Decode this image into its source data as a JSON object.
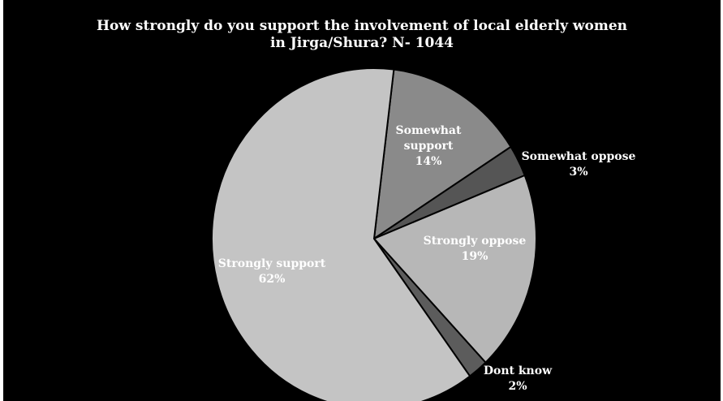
{
  "chart_data": {
    "type": "pie",
    "title_line1": "How  strongly do you support the involvement of local elderly women",
    "title_line2": "in Jirga/Shura? N- 1044",
    "slices": [
      {
        "name": "Strongly support",
        "value": 62,
        "label": "62%",
        "color": "#c4c4c4"
      },
      {
        "name": "Somewhat support",
        "value": 14,
        "label": "14%",
        "color": "#8a8a8a"
      },
      {
        "name": "Somewhat oppose",
        "value": 3,
        "label": "3%",
        "color": "#555555"
      },
      {
        "name": "Strongly oppose",
        "value": 19,
        "label": "19%",
        "color": "#b7b7b7"
      },
      {
        "name": "Dont know",
        "value": 2,
        "label": "2%",
        "color": "#5c5c5c"
      }
    ],
    "labels": {
      "somewhat_support_line1": "Somewhat",
      "somewhat_support_line2": "support"
    }
  }
}
